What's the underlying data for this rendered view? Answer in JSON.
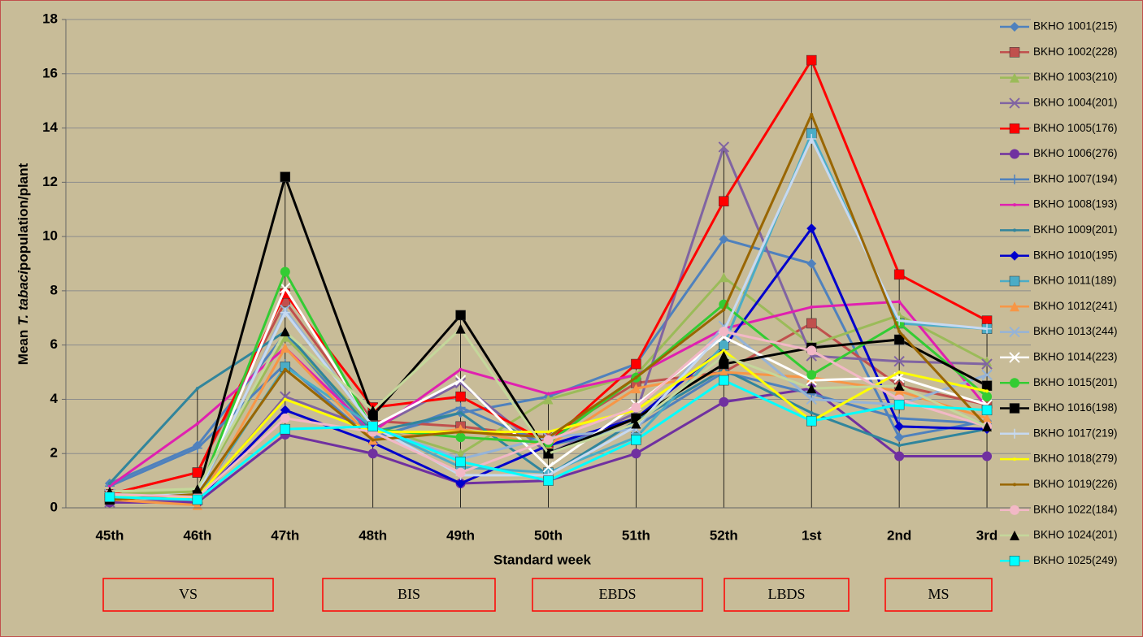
{
  "chart_data": {
    "type": "line",
    "ylabel_parts": [
      "Mean",
      "T. tabaci",
      "population/plant"
    ],
    "xlabel": "Standard week",
    "categories": [
      "45th",
      "46th",
      "47th",
      "48th",
      "49th",
      "50th",
      "51th",
      "52th",
      "1st",
      "2nd",
      "3rd"
    ],
    "ylim": [
      0,
      18
    ],
    "yticks": [
      0,
      2,
      4,
      6,
      8,
      10,
      12,
      14,
      16,
      18
    ],
    "grid": true,
    "legend": "right",
    "stages": [
      "VS",
      "BIS",
      "EBDS",
      "LBDS",
      "MS"
    ],
    "series": [
      {
        "name": "BKHO 1001(215)",
        "color": "#4f81bd",
        "marker": "diamond",
        "values": [
          0.9,
          2.3,
          6.4,
          2.6,
          3.5,
          4.1,
          5.3,
          9.9,
          9.0,
          2.6,
          3.2
        ]
      },
      {
        "name": "BKHO 1002(228)",
        "color": "#c0504d",
        "marker": "square",
        "values": [
          0.5,
          1.3,
          7.6,
          3.2,
          3.0,
          2.6,
          4.6,
          5.0,
          6.8,
          4.5,
          3.8
        ]
      },
      {
        "name": "BKHO 1003(210)",
        "color": "#9bbb59",
        "marker": "triangle",
        "values": [
          0.5,
          0.6,
          6.3,
          3.0,
          2.0,
          4.0,
          4.9,
          8.5,
          6.0,
          7.1,
          5.4
        ]
      },
      {
        "name": "BKHO 1004(201)",
        "color": "#8064a2",
        "marker": "x",
        "values": [
          0.2,
          0.3,
          4.1,
          2.9,
          4.6,
          2.0,
          3.5,
          13.3,
          5.6,
          5.4,
          5.3
        ]
      },
      {
        "name": "BKHO 1005(176)",
        "color": "#ff0000",
        "marker": "square",
        "values": [
          0.5,
          1.3,
          7.9,
          3.7,
          4.1,
          2.4,
          5.3,
          11.3,
          16.5,
          8.6,
          6.9
        ]
      },
      {
        "name": "BKHO 1006(276)",
        "color": "#7030a0",
        "marker": "circle",
        "values": [
          0.2,
          0.2,
          2.7,
          2.0,
          0.9,
          1.0,
          2.0,
          3.9,
          4.4,
          1.9,
          1.9
        ]
      },
      {
        "name": "BKHO 1007(194)",
        "color": "#4f81bd",
        "marker": "plus",
        "values": [
          0.8,
          2.2,
          5.3,
          2.5,
          3.7,
          2.3,
          3.0,
          5.0,
          4.2,
          3.3,
          3.1
        ]
      },
      {
        "name": "BKHO 1008(193)",
        "color": "#e020b0",
        "marker": "none",
        "values": [
          0.8,
          3.1,
          5.9,
          2.8,
          5.1,
          4.2,
          4.9,
          6.6,
          7.4,
          7.6,
          3.7
        ]
      },
      {
        "name": "BKHO 1009(201)",
        "color": "#31859c",
        "marker": "none",
        "values": [
          0.9,
          4.4,
          6.5,
          2.8,
          3.5,
          1.2,
          3.2,
          5.1,
          3.5,
          2.3,
          2.9
        ]
      },
      {
        "name": "BKHO 1010(195)",
        "color": "#0000cc",
        "marker": "diamond",
        "values": [
          0.4,
          0.3,
          3.6,
          2.4,
          0.9,
          2.3,
          3.3,
          5.9,
          10.3,
          3.0,
          2.9
        ]
      },
      {
        "name": "BKHO 1011(189)",
        "color": "#4bacc6",
        "marker": "square",
        "values": [
          0.4,
          0.3,
          5.2,
          3.0,
          1.5,
          1.3,
          2.6,
          6.0,
          13.8,
          6.8,
          6.6
        ]
      },
      {
        "name": "BKHO 1012(241)",
        "color": "#f79646",
        "marker": "triangle",
        "values": [
          0.3,
          0.1,
          5.9,
          2.5,
          2.9,
          2.3,
          4.4,
          5.0,
          4.8,
          4.3,
          3.3
        ]
      },
      {
        "name": "BKHO 1013(244)",
        "color": "#95b3d7",
        "marker": "x",
        "values": [
          0.5,
          0.4,
          7.3,
          3.0,
          1.8,
          2.6,
          2.9,
          6.7,
          4.0,
          3.8,
          4.9
        ]
      },
      {
        "name": "BKHO 1014(223)",
        "color": "#ffffff",
        "marker": "x",
        "values": [
          0.4,
          0.4,
          8.1,
          3.0,
          4.7,
          1.5,
          3.8,
          6.3,
          4.7,
          4.8,
          3.8
        ]
      },
      {
        "name": "BKHO 1015(201)",
        "color": "#33cc33",
        "marker": "circle",
        "values": [
          0.5,
          0.4,
          8.7,
          2.9,
          2.6,
          2.4,
          4.8,
          7.5,
          4.9,
          6.8,
          4.1
        ]
      },
      {
        "name": "BKHO 1016(198)",
        "color": "#000000",
        "marker": "square",
        "values": [
          0.3,
          0.5,
          12.2,
          3.4,
          7.1,
          2.0,
          3.3,
          5.3,
          5.9,
          6.2,
          4.5
        ]
      },
      {
        "name": "BKHO 1017(219)",
        "color": "#c6d9f1",
        "marker": "plus",
        "values": [
          0.4,
          0.5,
          7.2,
          3.0,
          1.2,
          1.2,
          3.0,
          6.5,
          13.6,
          6.9,
          6.6
        ]
      },
      {
        "name": "BKHO 1018(279)",
        "color": "#ffff00",
        "marker": "none",
        "values": [
          0.4,
          0.4,
          4.0,
          2.8,
          2.8,
          2.8,
          3.6,
          5.8,
          3.2,
          5.0,
          4.3
        ]
      },
      {
        "name": "BKHO 1019(226)",
        "color": "#996600",
        "marker": "none",
        "values": [
          0.3,
          0.5,
          5.1,
          2.5,
          2.8,
          2.6,
          4.8,
          7.3,
          14.5,
          6.5,
          3.0
        ]
      },
      {
        "name": "BKHO 1022(184)",
        "color": "#f2b8c6",
        "marker": "circle",
        "values": [
          0.5,
          0.4,
          3.3,
          2.8,
          1.3,
          2.5,
          3.7,
          6.5,
          5.8,
          4.0,
          3.0
        ]
      },
      {
        "name": "BKHO 1024(201)",
        "color": "#c4d79b",
        "marker": "triangle",
        "values": [
          0.6,
          0.7,
          6.5,
          3.6,
          6.6,
          2.0,
          3.1,
          5.6,
          4.4,
          4.5,
          3.0
        ]
      },
      {
        "name": "BKHO 1025(249)",
        "color": "#00ffff",
        "marker": "square",
        "values": [
          0.4,
          0.3,
          2.9,
          3.0,
          1.7,
          1.0,
          2.5,
          4.7,
          3.2,
          3.8,
          3.6
        ]
      }
    ]
  }
}
